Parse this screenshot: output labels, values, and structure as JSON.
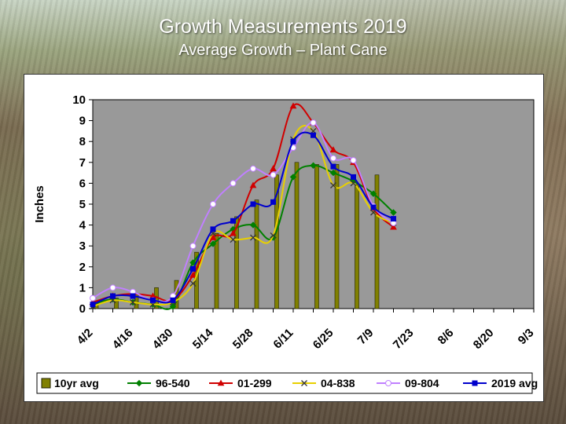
{
  "slide": {
    "title": "Growth Measurements 2019",
    "subtitle": "Average Growth – Plant Cane"
  },
  "chart_data": {
    "type": "bar+line",
    "ylabel": "Inches",
    "ylim": [
      0,
      10
    ],
    "yticks": [
      0,
      1,
      2,
      3,
      4,
      5,
      6,
      7,
      8,
      9,
      10
    ],
    "x_tick_labels": [
      "4/2",
      "4/16",
      "4/30",
      "5/14",
      "5/28",
      "6/11",
      "6/25",
      "7/9",
      "7/23",
      "8/6",
      "8/20",
      "9/3"
    ],
    "x_dates": [
      "4/2",
      "4/9",
      "4/16",
      "4/23",
      "4/30",
      "5/7",
      "5/14",
      "5/21",
      "5/28",
      "6/4",
      "6/11",
      "6/18",
      "6/25",
      "7/2",
      "7/9",
      "7/16",
      "7/23",
      "7/30",
      "8/6",
      "8/13",
      "8/20",
      "8/27",
      "9/3"
    ],
    "grid": false,
    "legend_position": "bottom",
    "series": [
      {
        "name": "10yr avg",
        "type": "bar",
        "color": "#808000",
        "values": [
          0.3,
          0.5,
          0.7,
          1.0,
          1.35,
          2.7,
          3.6,
          4.4,
          5.2,
          6.4,
          7.0,
          6.9,
          6.9,
          5.95,
          6.4
        ]
      },
      {
        "name": "96-540",
        "type": "line",
        "color": "#008000",
        "marker": "diamond",
        "values": [
          0.2,
          0.45,
          0.3,
          0.2,
          0.1,
          2.2,
          3.1,
          3.8,
          4.0,
          3.4,
          6.3,
          6.85,
          6.5,
          6.1,
          5.5,
          4.6
        ]
      },
      {
        "name": "01-299",
        "type": "line",
        "color": "#d00000",
        "marker": "triangle",
        "values": [
          0.3,
          0.6,
          0.7,
          0.6,
          0.4,
          1.6,
          3.4,
          3.6,
          5.9,
          6.7,
          9.7,
          8.9,
          7.6,
          7.0,
          4.8,
          3.9
        ]
      },
      {
        "name": "04-838",
        "type": "line",
        "color": "#e8d000",
        "marker": "x",
        "values": [
          0.1,
          0.4,
          0.3,
          0.2,
          0.3,
          1.2,
          3.6,
          3.3,
          3.4,
          3.5,
          8.1,
          8.5,
          5.9,
          6.0,
          4.6,
          4.1
        ]
      },
      {
        "name": "09-804",
        "type": "line",
        "color": "#c080ff",
        "marker": "circle",
        "values": [
          0.5,
          1.0,
          0.8,
          0.4,
          0.6,
          3.0,
          5.0,
          6.0,
          6.7,
          6.4,
          7.7,
          8.9,
          7.2,
          7.1,
          4.9,
          4.1
        ]
      },
      {
        "name": "2019 avg",
        "type": "line",
        "color": "#0000cc",
        "marker": "square",
        "values": [
          0.2,
          0.6,
          0.6,
          0.4,
          0.4,
          1.9,
          3.8,
          4.2,
          5.0,
          5.1,
          8.0,
          8.3,
          6.8,
          6.3,
          4.85,
          4.3
        ]
      }
    ]
  }
}
